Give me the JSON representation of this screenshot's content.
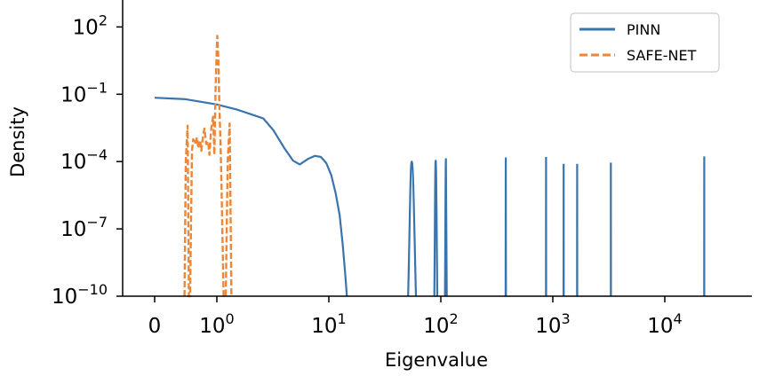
{
  "chart_data": {
    "type": "line",
    "title": "",
    "xlabel": "Eigenvalue",
    "ylabel": "Density",
    "xscale": "symlog",
    "yscale": "log",
    "xlim": [
      -0.7,
      44000
    ],
    "ylim": [
      1e-10,
      1000
    ],
    "grid": false,
    "legend_position": "top-right",
    "x_ticks": [
      {
        "value": 0,
        "base": "0",
        "exp": ""
      },
      {
        "value": 1,
        "base": "10",
        "exp": "0"
      },
      {
        "value": 10,
        "base": "10",
        "exp": "1"
      },
      {
        "value": 100,
        "base": "10",
        "exp": "2"
      },
      {
        "value": 1000,
        "base": "10",
        "exp": "3"
      },
      {
        "value": 10000,
        "base": "10",
        "exp": "4"
      }
    ],
    "y_ticks": [
      {
        "value": 1e-10,
        "base": "10",
        "exp": "−10"
      },
      {
        "value": 1e-07,
        "base": "10",
        "exp": "−7"
      },
      {
        "value": 0.0001,
        "base": "10",
        "exp": "−4"
      },
      {
        "value": 0.1,
        "base": "10",
        "exp": "−1"
      },
      {
        "value": 100,
        "base": "10",
        "exp": "2"
      }
    ],
    "series": [
      {
        "name": "PINN",
        "color": "#3a74ad",
        "style": "solid",
        "x": [
          0,
          0.5,
          1,
          1.5,
          2,
          2.6,
          3.2,
          4,
          4.8,
          5.5,
          6.5,
          7.5,
          8.5,
          9.5,
          10.5,
          11.5,
          12.5,
          13.3,
          14.0,
          14.5
        ],
        "y": [
          0.07,
          0.06,
          0.035,
          0.021,
          0.013,
          0.0083,
          0.0025,
          0.0004,
          0.00011,
          7.5e-05,
          0.00013,
          0.00018,
          0.00016,
          8.5e-05,
          2.5e-05,
          4e-06,
          4e-07,
          2e-08,
          1e-09,
          1e-10
        ],
        "spikes": [
          {
            "x": 55,
            "peak": 0.0001,
            "left": 51,
            "right": 60
          },
          {
            "x": 90,
            "peak": 0.00011,
            "left": 87.5,
            "right": 93
          },
          {
            "x": 111,
            "peak": 0.00013,
            "left": 109,
            "right": 113
          },
          {
            "x": 380,
            "peak": 0.00014,
            "left": 379,
            "right": 382
          },
          {
            "x": 870,
            "peak": 0.00016,
            "left": 868,
            "right": 872
          },
          {
            "x": 1250,
            "peak": 8e-05,
            "left": 1248,
            "right": 1252
          },
          {
            "x": 1650,
            "peak": 8e-05,
            "left": 1648,
            "right": 1652
          },
          {
            "x": 3300,
            "peak": 9e-05,
            "left": 3296,
            "right": 3304
          },
          {
            "x": 22500,
            "peak": 0.00017,
            "left": 22480,
            "right": 22520
          }
        ]
      },
      {
        "name": "SAFE-NET",
        "color": "#ef8636",
        "style": "dashed",
        "x": [
          0.48,
          0.5,
          0.53,
          0.55,
          0.57,
          0.6,
          0.62,
          0.65,
          0.68,
          0.7,
          0.73,
          0.75,
          0.78,
          0.8,
          0.83,
          0.86,
          0.88,
          0.91,
          0.94,
          0.96,
          0.98,
          1.0,
          1.01,
          1.03,
          1.05,
          1.08,
          1.1,
          1.15,
          1.2,
          1.25,
          1.3,
          1.35
        ],
        "y": [
          1e-10,
          0.0001,
          0.004,
          1e-10,
          1e-10,
          0.0003,
          0.001,
          0.0006,
          0.0012,
          0.0004,
          0.0009,
          0.0003,
          0.0015,
          0.003,
          0.0006,
          0.0008,
          0.0002,
          0.003,
          0.01,
          0.0002,
          0.2,
          15,
          40,
          5,
          0.05,
          0.0005,
          1e-05,
          1e-10,
          1e-10,
          0.0001,
          0.005,
          1e-10
        ]
      }
    ]
  }
}
